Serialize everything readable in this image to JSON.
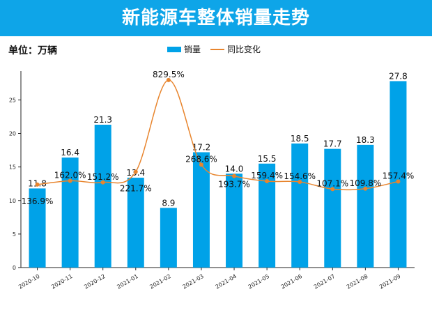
{
  "title": "新能源车整体销量走势",
  "unit_label": "单位：万辆",
  "colors": {
    "bar": "#00a2e8",
    "line": "#e8852e",
    "title_bg": "#0ea5e8"
  },
  "chart_data": {
    "type": "bar+line",
    "categories": [
      "2020-10",
      "2020-11",
      "2020-12",
      "2021-01",
      "2021-02",
      "2021-03",
      "2021-04",
      "2021-05",
      "2021-06",
      "2021-07",
      "2021-08",
      "2021-09"
    ],
    "series": [
      {
        "name": "销量",
        "type": "bar",
        "values": [
          11.8,
          16.4,
          21.3,
          13.4,
          8.9,
          17.2,
          14.0,
          15.5,
          18.5,
          17.7,
          18.3,
          27.8
        ],
        "labels": [
          "11.8",
          "16.4",
          "21.3",
          "13.4",
          "8.9",
          "17.2",
          "14.0",
          "15.5",
          "18.5",
          "17.7",
          "18.3",
          "27.8"
        ]
      },
      {
        "name": "同比变化",
        "type": "line",
        "smooth": true,
        "axis": "secondary-hidden",
        "values": [
          136.9,
          162.0,
          151.2,
          221.7,
          829.5,
          268.6,
          193.7,
          159.4,
          154.6,
          107.1,
          109.8,
          157.4
        ],
        "labels": [
          "136.9%",
          "162.0%",
          "151.2%",
          "221.7%",
          "829.5%",
          "268.6%",
          "193.7%",
          "159.4%",
          "154.6%",
          "107.1%",
          "109.8%",
          "157.4%"
        ]
      }
    ],
    "yticks": [
      "0",
      "5",
      "10",
      "15",
      "20",
      "25"
    ],
    "ylim": [
      0,
      29.3
    ],
    "grid": false,
    "legend": "top-center"
  }
}
